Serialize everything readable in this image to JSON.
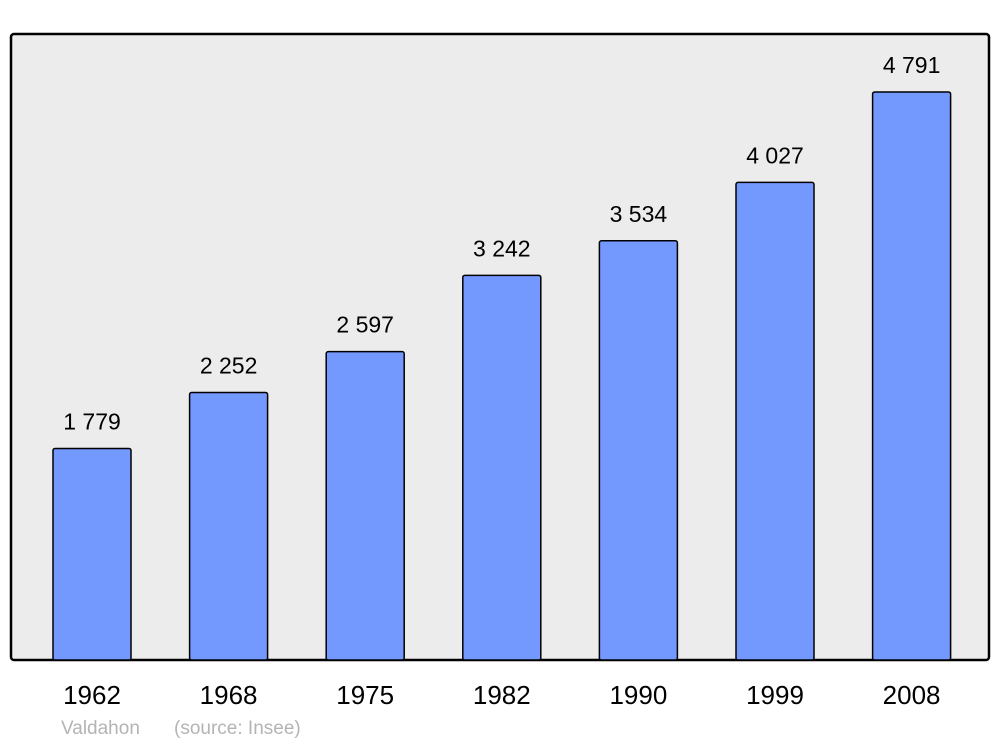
{
  "chart_data": {
    "type": "bar",
    "categories": [
      "1962",
      "1968",
      "1975",
      "1982",
      "1990",
      "1999",
      "2008"
    ],
    "values": [
      1779,
      2252,
      2597,
      3242,
      3534,
      4027,
      4791
    ],
    "value_labels": [
      "1 779",
      "2 252",
      "2 597",
      "3 242",
      "3 534",
      "4 027",
      "4 791"
    ],
    "title": "",
    "xlabel": "",
    "ylabel": "",
    "ylim": [
      0,
      4791
    ],
    "grid": false,
    "colors": {
      "bar": "#7399ff",
      "plot_background": "#ececec",
      "border": "#000000"
    }
  },
  "footer": {
    "place": "Valdahon",
    "source": "(source: Insee)"
  }
}
